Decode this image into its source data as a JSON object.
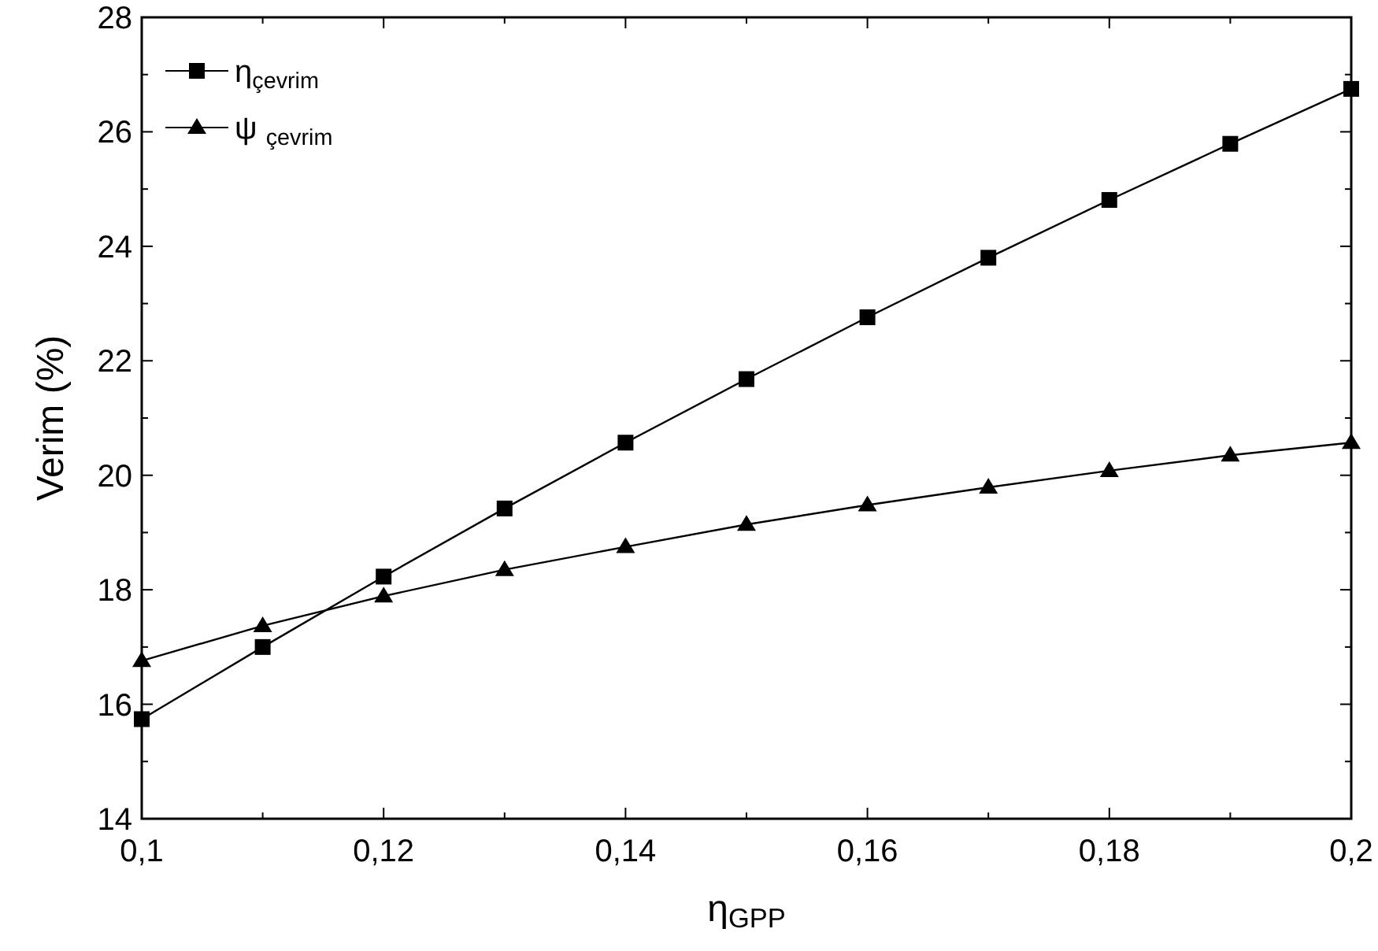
{
  "chart_data": {
    "type": "line",
    "xlabel": "η$_{GPP}$",
    "ylabel": "Verim (%)",
    "x": [
      0.1,
      0.11,
      0.12,
      0.13,
      0.14,
      0.15,
      0.16,
      0.17,
      0.18,
      0.19,
      0.2
    ],
    "series": [
      {
        "name": "η$_{çevrim}$",
        "color": "#000000",
        "marker": "square",
        "values": [
          15.74,
          17.0,
          18.23,
          19.42,
          20.57,
          21.68,
          22.76,
          23.8,
          24.81,
          25.79,
          26.75
        ]
      },
      {
        "name": "ψ $_{çevrim}$",
        "color": "#000000",
        "marker": "triangle",
        "values": [
          16.76,
          17.37,
          17.89,
          18.35,
          18.75,
          19.14,
          19.48,
          19.79,
          20.08,
          20.35,
          20.57
        ]
      }
    ],
    "xlim": [
      0.1,
      0.2
    ],
    "xticks": [
      {
        "value": 0.1,
        "label": "0,1"
      },
      {
        "value": 0.11,
        "label": null
      },
      {
        "value": 0.12,
        "label": "0,12"
      },
      {
        "value": 0.13,
        "label": null
      },
      {
        "value": 0.14,
        "label": "0,14"
      },
      {
        "value": 0.15,
        "label": null
      },
      {
        "value": 0.16,
        "label": "0,16"
      },
      {
        "value": 0.17,
        "label": null
      },
      {
        "value": 0.18,
        "label": "0,18"
      },
      {
        "value": 0.19,
        "label": null
      },
      {
        "value": 0.2,
        "label": "0,2"
      }
    ],
    "ylim": [
      14,
      28
    ],
    "yticks": [
      14,
      {
        "value": 15,
        "label": null
      },
      16,
      {
        "value": 17,
        "label": null
      },
      18,
      {
        "value": 19,
        "label": null
      },
      20,
      {
        "value": 21,
        "label": null
      },
      22,
      {
        "value": 23,
        "label": null
      },
      24,
      {
        "value": 25,
        "label": null
      },
      26,
      {
        "value": 27,
        "label": null
      },
      28
    ],
    "grid": false,
    "legend": "top left",
    "line_style": "solid"
  }
}
